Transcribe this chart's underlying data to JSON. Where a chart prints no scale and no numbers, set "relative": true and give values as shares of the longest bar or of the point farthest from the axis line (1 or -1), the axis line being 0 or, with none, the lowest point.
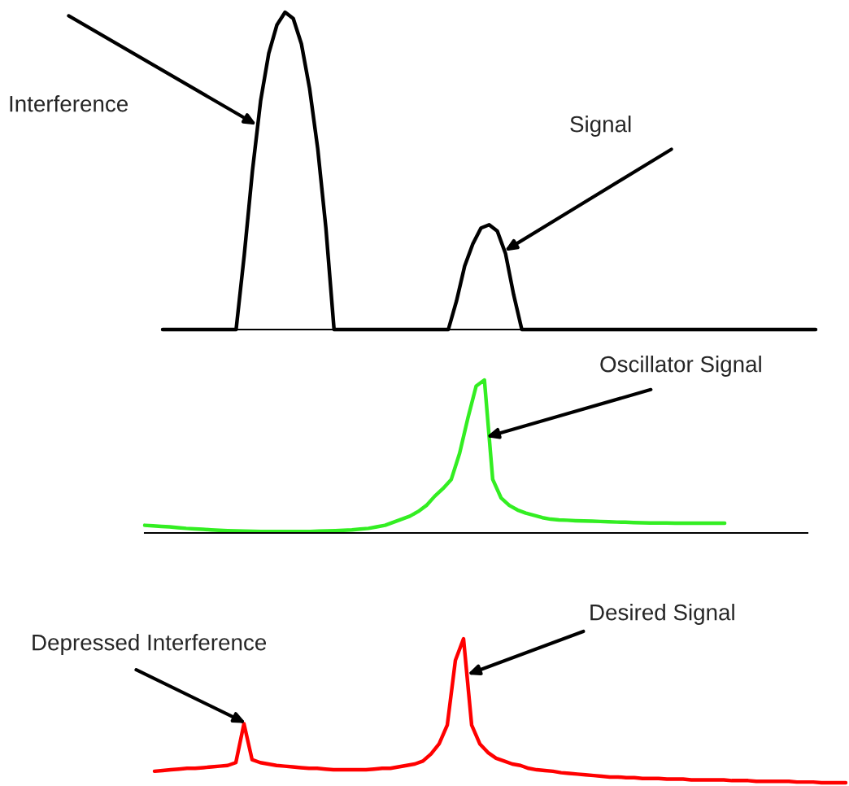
{
  "chart_data": [
    {
      "type": "line",
      "relative": true,
      "legend": false,
      "grid": false,
      "marker": "none",
      "line_style": "solid",
      "categories": [
        null,
        null,
        null,
        null,
        null,
        null,
        null,
        null,
        null,
        null,
        null,
        null,
        null,
        null,
        null,
        null,
        null,
        null,
        null,
        null,
        null,
        null,
        null,
        null,
        null,
        null,
        null,
        null,
        null,
        null,
        null,
        null,
        null,
        null,
        null,
        null,
        null,
        null,
        null,
        null,
        null,
        null,
        null,
        null,
        null,
        null,
        null,
        null,
        null,
        null,
        null,
        null,
        null,
        null,
        null,
        null,
        null,
        null,
        null,
        null,
        null,
        null,
        null,
        null,
        null,
        null,
        null,
        null,
        null,
        null,
        null,
        null,
        null,
        null,
        null,
        null,
        null,
        null,
        null,
        null,
        null
      ],
      "series": [
        {
          "color": "#000000",
          "values": [
            0,
            0,
            0,
            0,
            0,
            0,
            0,
            0,
            0,
            0,
            0.235,
            0.5,
            0.72,
            0.87,
            0.96,
            1,
            0.98,
            0.9,
            0.76,
            0.57,
            0.32,
            0,
            0,
            0,
            0,
            0,
            0,
            0,
            0,
            0,
            0,
            0,
            0,
            0,
            0,
            0,
            0.09,
            0.2,
            0.27,
            0.32,
            0.33,
            0.31,
            0.24,
            0.11,
            0,
            0,
            0,
            0,
            0,
            0,
            0,
            0,
            0,
            0,
            0,
            0,
            0,
            0,
            0,
            0,
            0,
            0,
            0,
            0,
            0,
            0,
            0,
            0,
            0,
            0,
            0,
            0,
            0,
            0,
            0,
            0,
            0,
            0,
            0,
            0,
            0
          ]
        }
      ],
      "annotations": [
        "Interference",
        "Signal"
      ]
    },
    {
      "type": "line",
      "relative": true,
      "legend": false,
      "grid": false,
      "marker": "none",
      "line_style": "solid",
      "categories": [
        null,
        null,
        null,
        null,
        null,
        null,
        null,
        null,
        null,
        null,
        null,
        null,
        null,
        null,
        null,
        null,
        null,
        null,
        null,
        null,
        null,
        null,
        null,
        null,
        null,
        null,
        null,
        null,
        null,
        null,
        null,
        null,
        null,
        null,
        null,
        null,
        null,
        null,
        null,
        null,
        null,
        null,
        null,
        null,
        null,
        null,
        null,
        null,
        null,
        null,
        null,
        null,
        null,
        null,
        null,
        null,
        null,
        null,
        null,
        null,
        null,
        null,
        null,
        null,
        null,
        null,
        null,
        null,
        null,
        null,
        null,
        null,
        null,
        null,
        null,
        null,
        null,
        null,
        null,
        null,
        null
      ],
      "series": [
        {
          "color": "#33ee22",
          "values": [
            0.05,
            0.047,
            0.043,
            0.04,
            0.035,
            0.03,
            0.027,
            0.024,
            0.02,
            0.017,
            0.015,
            0.013,
            0.012,
            0.011,
            0.01,
            0.01,
            0.01,
            0.01,
            0.01,
            0.01,
            0.01,
            0.012,
            0.013,
            0.015,
            0.017,
            0.02,
            0.025,
            0.03,
            0.04,
            0.05,
            0.07,
            0.09,
            0.11,
            0.14,
            0.18,
            0.24,
            0.29,
            0.35,
            0.52,
            0.75,
            0.96,
            1,
            0.35,
            0.23,
            0.18,
            0.15,
            0.13,
            0.115,
            0.1,
            0.09,
            0.085,
            0.083,
            0.08,
            0.078,
            0.077,
            0.075,
            0.073,
            0.071,
            0.07,
            0.068,
            0.066,
            0.065,
            0.065,
            0.065,
            0.064,
            0.064,
            0.064,
            0.064,
            0.064,
            0.064,
            0.064,
            null,
            null,
            null,
            null,
            null,
            null,
            null,
            null,
            null,
            null
          ]
        }
      ],
      "annotations": [
        "Oscillator Signal"
      ]
    },
    {
      "type": "line",
      "relative": true,
      "legend": false,
      "grid": false,
      "marker": "none",
      "line_style": "solid",
      "categories": [
        null,
        null,
        null,
        null,
        null,
        null,
        null,
        null,
        null,
        null,
        null,
        null,
        null,
        null,
        null,
        null,
        null,
        null,
        null,
        null,
        null,
        null,
        null,
        null,
        null,
        null,
        null,
        null,
        null,
        null,
        null,
        null,
        null,
        null,
        null,
        null,
        null,
        null,
        null,
        null,
        null,
        null,
        null,
        null,
        null,
        null,
        null,
        null,
        null,
        null,
        null,
        null,
        null,
        null,
        null,
        null,
        null,
        null,
        null,
        null,
        null,
        null,
        null,
        null,
        null,
        null,
        null,
        null,
        null,
        null,
        null,
        null,
        null,
        null,
        null,
        null,
        null,
        null,
        null,
        null,
        null,
        null,
        null,
        null,
        null,
        null
      ],
      "series": [
        {
          "color": "#ff0000",
          "values": [
            0.08,
            0.085,
            0.09,
            0.095,
            0.1,
            0.1,
            0.105,
            0.11,
            0.115,
            0.12,
            0.14,
            0.41,
            0.16,
            0.14,
            0.13,
            0.12,
            0.115,
            0.11,
            0.105,
            0.1,
            0.1,
            0.095,
            0.09,
            0.09,
            0.09,
            0.09,
            0.09,
            0.095,
            0.1,
            0.1,
            0.11,
            0.12,
            0.13,
            0.15,
            0.2,
            0.27,
            0.4,
            0.85,
            1,
            0.4,
            0.27,
            0.21,
            0.17,
            0.15,
            0.13,
            0.12,
            0.1,
            0.09,
            0.085,
            0.08,
            0.07,
            0.065,
            0.06,
            0.055,
            0.05,
            0.045,
            0.04,
            0.04,
            0.035,
            0.035,
            0.03,
            0.03,
            0.03,
            0.025,
            0.025,
            0.025,
            0.02,
            0.02,
            0.02,
            0.02,
            0.02,
            0.015,
            0.015,
            0.015,
            0.01,
            0.01,
            0.01,
            0.01,
            0.01,
            0.005,
            0.005,
            0.005,
            0,
            0,
            0,
            0
          ]
        }
      ],
      "annotations": [
        "Depressed Interference",
        "Desired Signal"
      ]
    }
  ]
}
